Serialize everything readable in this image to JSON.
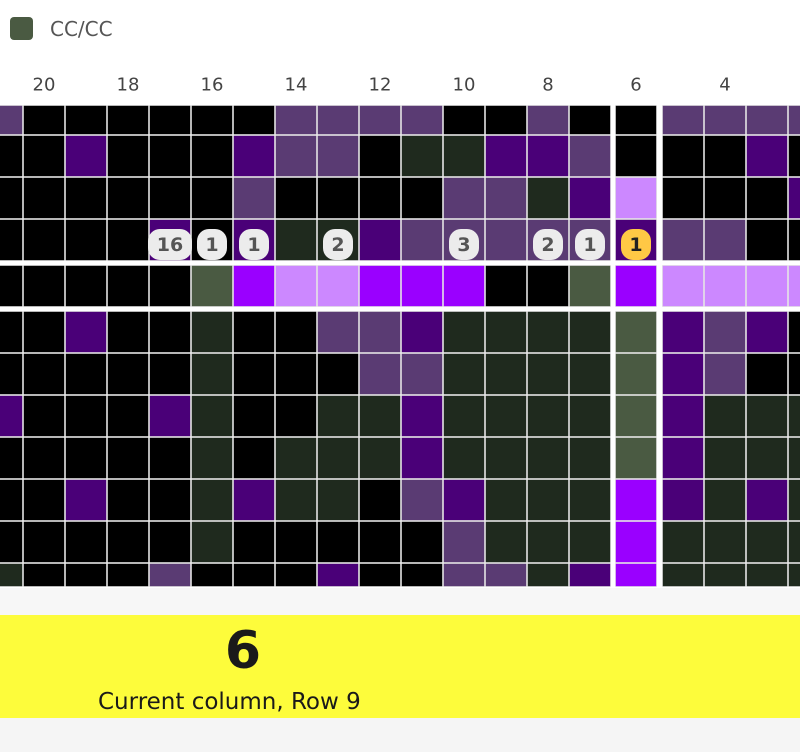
{
  "legend": {
    "label": "CC/CC"
  },
  "column_labels": [
    20,
    18,
    16,
    14,
    12,
    10,
    8,
    6,
    4
  ],
  "run_counts": [
    16,
    1,
    1,
    2,
    3,
    2,
    1,
    1
  ],
  "status": {
    "column": 6,
    "caption": "Current column, Row 9"
  }
}
